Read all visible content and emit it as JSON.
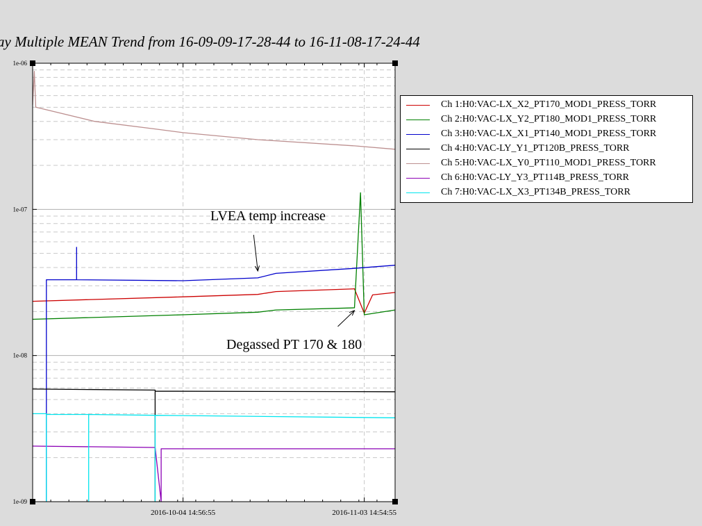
{
  "chart_data": {
    "type": "line",
    "title": "ay Multiple MEAN Trend from 16-09-09-17-28-44 to 16-11-08-17-24-44",
    "xlabel": "",
    "ylabel": "",
    "yscale": "log",
    "ylim": [
      1e-09,
      1e-06
    ],
    "xlim": [
      "2016-09-09 17:28:44",
      "2016-11-08 17:24:44"
    ],
    "grid": true,
    "legend_position": "right",
    "y_ticks": [
      {
        "label": "1e-06",
        "value": 1e-06
      },
      {
        "label": "1e-07",
        "value": 1e-07
      },
      {
        "label": "1e-08",
        "value": 1e-08
      },
      {
        "label": "1e-09",
        "value": 1e-09
      }
    ],
    "x_ticks": [
      {
        "label": "2016-10-04 14:56:55",
        "value": "2016-10-04 14:56:55"
      },
      {
        "label": "2016-11-03 14:54:55",
        "value": "2016-11-03 14:54:55"
      }
    ],
    "series": [
      {
        "name": "Ch 1:H0:VAC-LX_X2_PT170_MOD1_PRESS_TORR",
        "color": "#cc0000",
        "points": [
          [
            "2016-09-09 17:28:44",
            2.35e-08
          ],
          [
            "2016-10-04 14:56:55",
            2.52e-08
          ],
          [
            "2016-10-17 00:00:00",
            2.62e-08
          ],
          [
            "2016-10-20 00:00:00",
            2.74e-08
          ],
          [
            "2016-11-02 00:00:00",
            2.86e-08
          ],
          [
            "2016-11-03 14:54:55",
            1.95e-08
          ],
          [
            "2016-11-05 00:00:00",
            2.6e-08
          ],
          [
            "2016-11-08 17:24:44",
            2.7e-08
          ]
        ]
      },
      {
        "name": "Ch 2:H0:VAC-LX_Y2_PT180_MOD1_PRESS_TORR",
        "color": "#008000",
        "points": [
          [
            "2016-09-09 17:28:44",
            1.77e-08
          ],
          [
            "2016-10-04 14:56:55",
            1.9e-08
          ],
          [
            "2016-10-17 00:00:00",
            1.98e-08
          ],
          [
            "2016-10-20 00:00:00",
            2.05e-08
          ],
          [
            "2016-11-02 00:00:00",
            2.12e-08
          ],
          [
            "2016-11-03 00:00:00",
            1.3e-07
          ],
          [
            "2016-11-03 14:54:55",
            1.9e-08
          ],
          [
            "2016-11-08 17:24:44",
            2.05e-08
          ]
        ]
      },
      {
        "name": "Ch 3:H0:VAC-LX_X1_PT140_MOD1_PRESS_TORR",
        "color": "#0000cc",
        "points": [
          [
            "2016-09-12 00:00:00",
            1e-09
          ],
          [
            "2016-09-12 00:00:00",
            3.3e-08
          ],
          [
            "2016-09-17 00:00:00",
            3.3e-08
          ],
          [
            "2016-09-17 00:00:00",
            5.5e-08
          ],
          [
            "2016-09-17 00:00:00",
            3.3e-08
          ],
          [
            "2016-10-04 14:56:55",
            3.25e-08
          ],
          [
            "2016-10-17 00:00:00",
            3.4e-08
          ],
          [
            "2016-10-20 00:00:00",
            3.65e-08
          ],
          [
            "2016-11-02 00:00:00",
            3.95e-08
          ],
          [
            "2016-11-08 17:24:44",
            4.15e-08
          ]
        ]
      },
      {
        "name": "Ch 4:H0:VAC-LY_Y1_PT120B_PRESS_TORR",
        "color": "#000000",
        "points": [
          [
            "2016-09-09 17:28:44",
            5.9e-09
          ],
          [
            "2016-09-30 00:00:00",
            5.8e-09
          ],
          [
            "2016-09-30 00:00:00",
            1e-09
          ],
          [
            "2016-09-30 00:00:00",
            5.7e-09
          ],
          [
            "2016-11-08 17:24:44",
            5.65e-09
          ]
        ]
      },
      {
        "name": "Ch 5:H0:VAC-LX_Y0_PT110_MOD1_PRESS_TORR",
        "color": "#bc8f8f",
        "points": [
          [
            "2016-09-09 17:28:44",
            5.2e-07
          ],
          [
            "2016-09-10 00:00:00",
            8.8e-07
          ],
          [
            "2016-09-10 06:00:00",
            5e-07
          ],
          [
            "2016-09-20 00:00:00",
            4e-07
          ],
          [
            "2016-09-30 00:00:00",
            3.55e-07
          ],
          [
            "2016-10-04 14:56:55",
            3.35e-07
          ],
          [
            "2016-10-17 00:00:00",
            3e-07
          ],
          [
            "2016-11-02 00:00:00",
            2.72e-07
          ],
          [
            "2016-11-08 17:24:44",
            2.58e-07
          ]
        ]
      },
      {
        "name": "Ch 6:H0:VAC-LY_Y3_PT114B_PRESS_TORR",
        "color": "#8b00b5",
        "points": [
          [
            "2016-09-09 17:28:44",
            2.4e-09
          ],
          [
            "2016-09-30 00:00:00",
            2.35e-09
          ],
          [
            "2016-10-01 00:00:00",
            1e-09
          ],
          [
            "2016-10-01 00:00:00",
            2.3e-09
          ],
          [
            "2016-11-08 17:24:44",
            2.3e-09
          ]
        ]
      },
      {
        "name": "Ch 7:H0:VAC-LX_X3_PT134B_PRESS_TORR",
        "color": "#00e5ee",
        "points": [
          [
            "2016-09-09 17:28:44",
            4e-09
          ],
          [
            "2016-09-12 00:00:00",
            4e-09
          ],
          [
            "2016-09-12 00:00:00",
            1e-09
          ],
          [
            "2016-09-12 00:00:00",
            3.95e-09
          ],
          [
            "2016-09-19 00:00:00",
            3.95e-09
          ],
          [
            "2016-09-19 00:00:00",
            1e-09
          ],
          [
            "2016-09-19 00:00:00",
            3.95e-09
          ],
          [
            "2016-09-30 00:00:00",
            3.9e-09
          ],
          [
            "2016-09-30 00:00:00",
            1e-09
          ],
          [
            "2016-09-30 00:00:00",
            3.9e-09
          ],
          [
            "2016-11-08 17:24:44",
            3.75e-09
          ]
        ]
      }
    ],
    "annotations": [
      {
        "text": "LVEA temp increase",
        "x": "2016-10-17 00:00:00",
        "y": 3.55e-08
      },
      {
        "text": "Degassed PT 170 & 180",
        "x": "2016-11-02 00:00:00",
        "y": 2.1e-08
      }
    ]
  }
}
